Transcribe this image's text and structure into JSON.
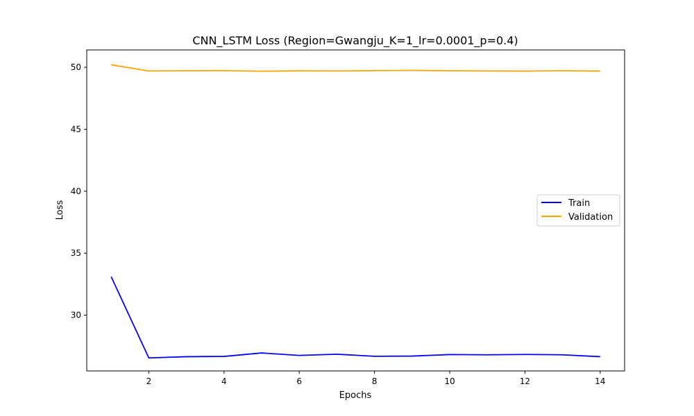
{
  "chart_data": {
    "type": "line",
    "title": "CNN_LSTM Loss (Region=Gwangju_K=1_lr=0.0001_p=0.4)",
    "xlabel": "Epochs",
    "ylabel": "Loss",
    "x": [
      1,
      2,
      3,
      4,
      5,
      6,
      7,
      8,
      9,
      10,
      11,
      12,
      13,
      14
    ],
    "xlim": [
      0.35,
      14.65
    ],
    "ylim": [
      25.5,
      51.4
    ],
    "xticks": [
      2,
      4,
      6,
      8,
      10,
      12,
      14
    ],
    "yticks": [
      30,
      35,
      40,
      45,
      50
    ],
    "grid": false,
    "legend_position": "center-right",
    "series": [
      {
        "name": "Train",
        "color": "#0000ff",
        "values": [
          33.1,
          26.55,
          26.65,
          26.67,
          26.95,
          26.75,
          26.85,
          26.68,
          26.7,
          26.82,
          26.8,
          26.83,
          26.8,
          26.65
        ]
      },
      {
        "name": "Validation",
        "color": "#ffa500",
        "values": [
          50.2,
          49.7,
          49.72,
          49.73,
          49.68,
          49.71,
          49.7,
          49.73,
          49.75,
          49.72,
          49.7,
          49.69,
          49.72,
          49.69
        ]
      }
    ]
  }
}
